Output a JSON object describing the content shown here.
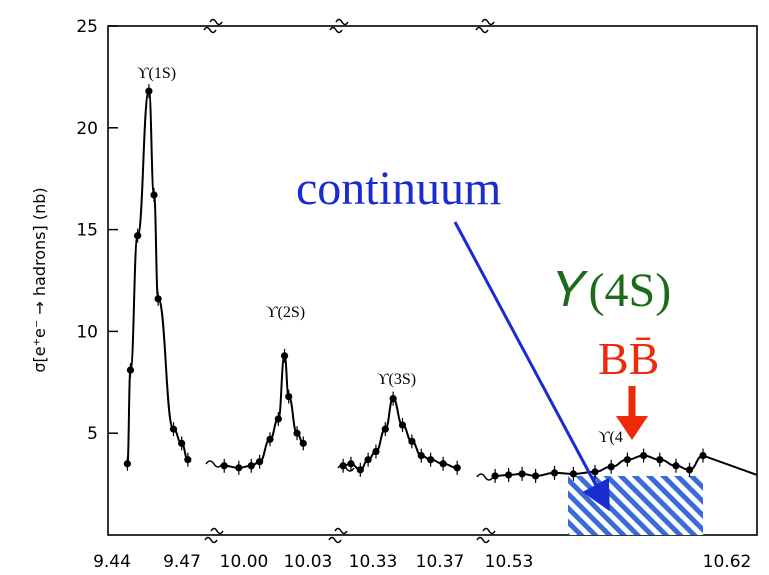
{
  "chart_data": {
    "type": "scatter",
    "title": "",
    "xlabel": "",
    "ylabel": "σ[e⁺e⁻ → hadrons] (nb)",
    "ylim": [
      0,
      25
    ],
    "yticks": [
      5,
      10,
      15,
      20,
      25
    ],
    "x_tick_labels": [
      "9.44",
      "9.47",
      "10.00",
      "10.03",
      "10.33",
      "10.37",
      "10.53",
      "10.62"
    ],
    "axis_breaks": "yes",
    "grid": false,
    "segments": [
      {
        "name": "Υ(1S) region",
        "label": "ϒ(1S)",
        "x_range": [
          9.44,
          9.48
        ],
        "points": [
          [
            9.4475,
            3.5
          ],
          [
            9.449,
            8.1
          ],
          [
            9.4525,
            14.7
          ],
          [
            9.458,
            21.8
          ],
          [
            9.4605,
            16.7
          ],
          [
            9.4625,
            11.6
          ],
          [
            9.47,
            5.2
          ],
          [
            9.474,
            4.5
          ],
          [
            9.477,
            3.7
          ]
        ]
      },
      {
        "name": "Υ(2S) region",
        "label": "ϒ(2S)",
        "x_range": [
          9.99,
          10.04
        ],
        "points": [
          [
            9.993,
            3.4
          ],
          [
            10.0,
            3.3
          ],
          [
            10.006,
            3.4
          ],
          [
            10.01,
            3.6
          ],
          [
            10.015,
            4.7
          ],
          [
            10.019,
            5.7
          ],
          [
            10.022,
            8.8
          ],
          [
            10.024,
            6.8
          ],
          [
            10.028,
            5.0
          ],
          [
            10.031,
            4.5
          ]
        ]
      },
      {
        "name": "Υ(3S) region",
        "label": "ϒ(3S)",
        "x_range": [
          10.32,
          10.4
        ],
        "points": [
          [
            10.322,
            3.4
          ],
          [
            10.327,
            3.5
          ],
          [
            10.333,
            3.2
          ],
          [
            10.338,
            3.7
          ],
          [
            10.343,
            4.1
          ],
          [
            10.349,
            5.2
          ],
          [
            10.354,
            6.7
          ],
          [
            10.36,
            5.4
          ],
          [
            10.366,
            4.6
          ],
          [
            10.372,
            3.9
          ],
          [
            10.378,
            3.7
          ],
          [
            10.386,
            3.5
          ],
          [
            10.395,
            3.3
          ]
        ]
      },
      {
        "name": "Υ(4S) region",
        "label": "ϒ(4",
        "x_range": [
          10.52,
          10.62
        ],
        "points": [
          [
            10.523,
            2.9
          ],
          [
            10.528,
            2.95
          ],
          [
            10.533,
            3.0
          ],
          [
            10.538,
            2.9
          ],
          [
            10.545,
            3.05
          ],
          [
            10.552,
            3.0
          ],
          [
            10.56,
            3.1
          ],
          [
            10.566,
            3.35
          ],
          [
            10.572,
            3.7
          ],
          [
            10.578,
            3.9
          ],
          [
            10.584,
            3.7
          ],
          [
            10.59,
            3.4
          ],
          [
            10.595,
            3.2
          ],
          [
            10.6,
            3.9
          ]
        ]
      }
    ],
    "annotations": [
      {
        "text": "continuum",
        "color": "#1a2bd0"
      },
      {
        "text": "𝛶(4S)",
        "color": "#1b6b1b"
      },
      {
        "text": "BB̄",
        "color": "#ee2a0a"
      }
    ],
    "continuum_box": {
      "x_range": [
        10.55,
        10.6
      ],
      "y_range": [
        0,
        2.9
      ],
      "fill": "hatched",
      "color": "#3a6bd6"
    }
  }
}
